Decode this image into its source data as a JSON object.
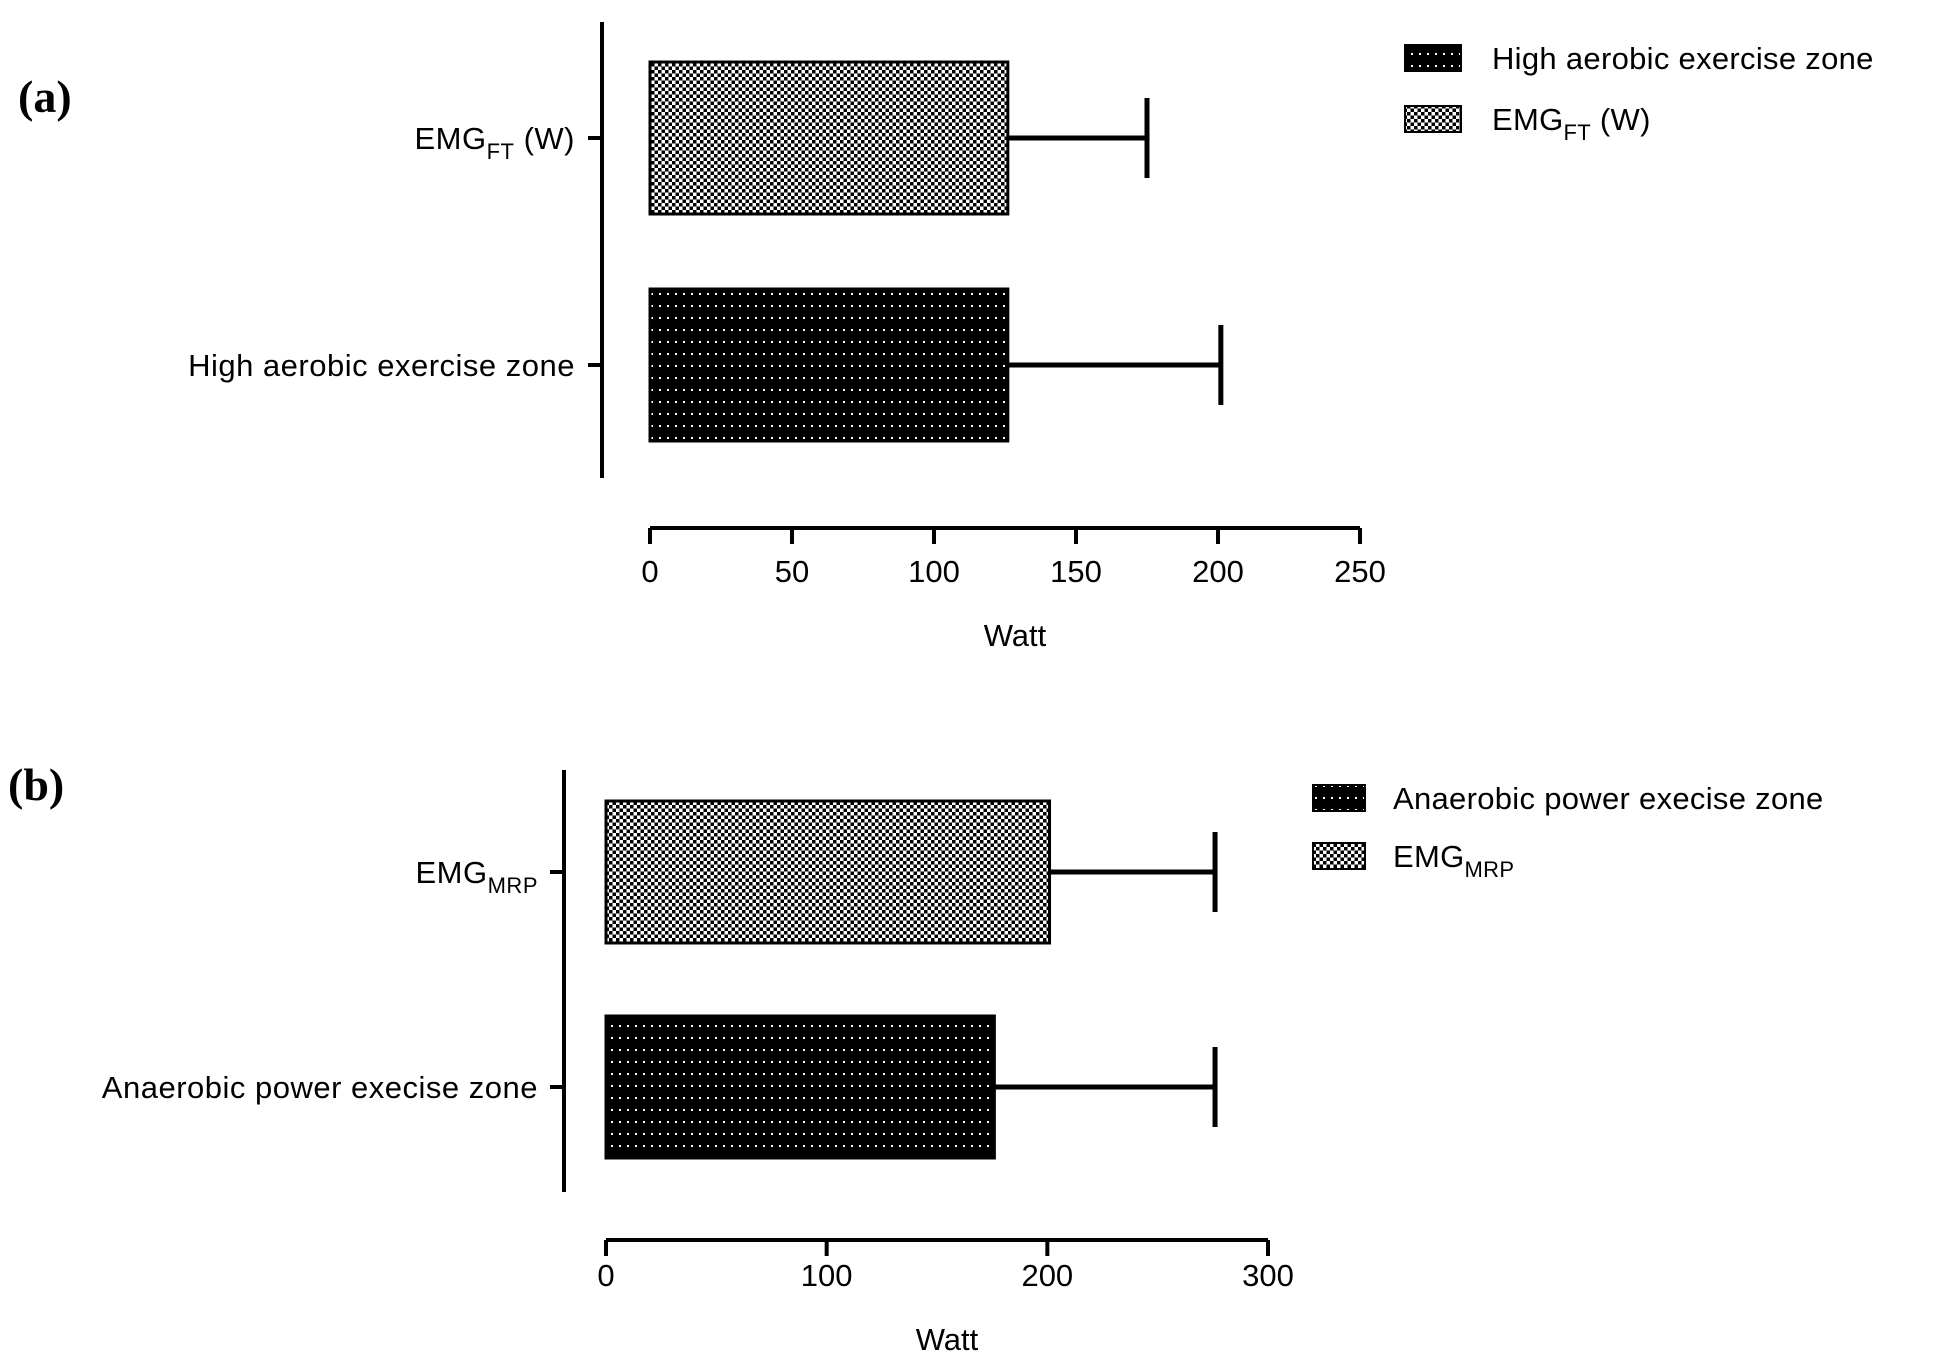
{
  "chart_data": [
    {
      "panel": "(a)",
      "type": "bar",
      "orientation": "horizontal",
      "categories": [
        {
          "main": "EMG",
          "sub": "FT",
          "rest": " (W)"
        },
        {
          "main": "High aerobic exercise zone",
          "sub": "",
          "rest": ""
        }
      ],
      "values": [
        126,
        126
      ],
      "errors": [
        49,
        75
      ],
      "patterns": [
        "checker",
        "dots"
      ],
      "xlabel": "Watt",
      "xlim": [
        0,
        250
      ],
      "xticks": [
        0,
        50,
        100,
        150,
        200,
        250
      ],
      "legend": [
        {
          "main": "High aerobic exercise zone",
          "sub": "",
          "rest": "",
          "pattern": "dots"
        },
        {
          "main": "EMG",
          "sub": "FT",
          "rest": " (W)",
          "pattern": "checker"
        }
      ],
      "legend_position": "top-right",
      "grid": false
    },
    {
      "panel": "(b)",
      "type": "bar",
      "orientation": "horizontal",
      "categories": [
        {
          "main": "EMG",
          "sub": "MRP",
          "rest": ""
        },
        {
          "main": "Anaerobic power execise zone",
          "sub": "",
          "rest": ""
        }
      ],
      "values": [
        201,
        176
      ],
      "errors": [
        75,
        100
      ],
      "patterns": [
        "checker",
        "dots"
      ],
      "xlabel": "Watt",
      "xlim": [
        0,
        300
      ],
      "xticks": [
        0,
        100,
        200,
        300
      ],
      "legend": [
        {
          "main": "Anaerobic power execise zone",
          "sub": "",
          "rest": "",
          "pattern": "dots"
        },
        {
          "main": "EMG",
          "sub": "MRP",
          "rest": "",
          "pattern": "checker"
        }
      ],
      "legend_position": "top-right",
      "grid": false
    }
  ],
  "colors": {
    "bar": "#000000",
    "pattern": "#ffffff",
    "background": "#ffffff"
  }
}
